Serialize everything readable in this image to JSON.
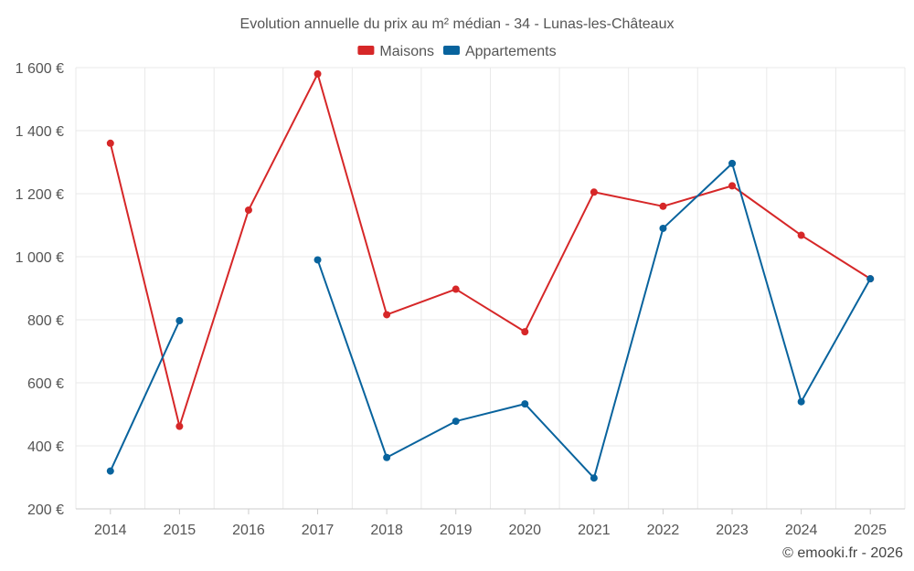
{
  "chart_data": {
    "type": "line",
    "title": "Evolution annuelle du prix au m² médian - 34 - Lunas-les-Châteaux",
    "categories": [
      "2014",
      "2015",
      "2016",
      "2017",
      "2018",
      "2019",
      "2020",
      "2021",
      "2022",
      "2023",
      "2024",
      "2025"
    ],
    "series": [
      {
        "name": "Maisons",
        "color": "#d62728",
        "values": [
          1360,
          462,
          1148,
          1580,
          816,
          897,
          762,
          1205,
          1160,
          1225,
          1068,
          930
        ]
      },
      {
        "name": "Appartements",
        "color": "#08639d",
        "values": [
          320,
          797,
          null,
          990,
          363,
          478,
          533,
          298,
          1090,
          1296,
          540,
          930
        ]
      }
    ],
    "ylim": [
      200,
      1600
    ],
    "yticks": [
      200,
      400,
      600,
      800,
      1000,
      1200,
      1400,
      1600
    ],
    "ytick_labels": [
      "200 €",
      "400 €",
      "600 €",
      "800 €",
      "1 000 €",
      "1 200 €",
      "1 400 €",
      "1 600 €"
    ],
    "grid": true,
    "legend_position": "top-center",
    "xlabel": "",
    "ylabel": ""
  },
  "credit": "© emooki.fr - 2026"
}
